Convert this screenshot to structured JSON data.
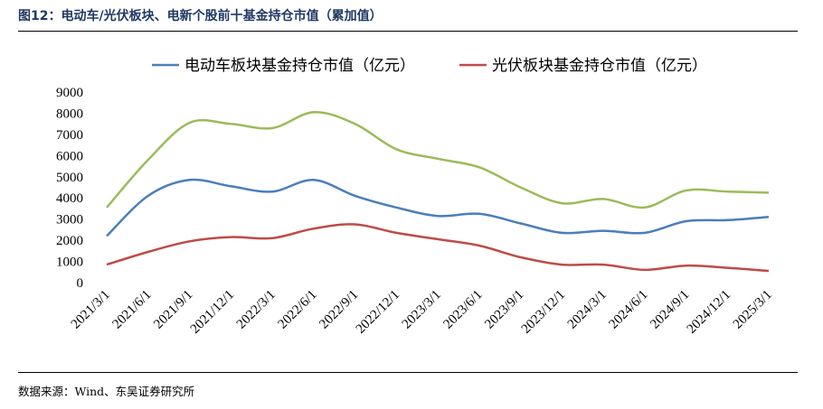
{
  "figure_title": "图12：电动车/光伏板块、电新个股前十基金持仓市值（累加值）",
  "source_note": "数据来源：Wind、东吴证券研究所",
  "chart_data": {
    "type": "line",
    "x": [
      "2021/3/1",
      "2021/6/1",
      "2021/9/1",
      "2021/12/1",
      "2022/3/1",
      "2022/6/1",
      "2022/9/1",
      "2022/12/1",
      "2023/3/1",
      "2023/6/1",
      "2023/9/1",
      "2023/12/1",
      "2024/3/1",
      "2024/6/1",
      "2024/9/1",
      "2024/12/1",
      "2025/3/1"
    ],
    "series": [
      {
        "name": "电动车板块基金持仓市值（亿元）",
        "color": "#4a7ebb",
        "legend": true,
        "values": [
          2200,
          4100,
          4850,
          4550,
          4300,
          4850,
          4100,
          3550,
          3150,
          3250,
          2800,
          2350,
          2450,
          2350,
          2900,
          2950,
          3100
        ]
      },
      {
        "name": "光伏板块基金持仓市值（亿元）",
        "color": "#be4b48",
        "legend": true,
        "values": [
          850,
          1450,
          1950,
          2150,
          2100,
          2550,
          2750,
          2350,
          2050,
          1750,
          1200,
          850,
          850,
          600,
          800,
          700,
          550
        ]
      },
      {
        "name": "",
        "color": "#9bbb59",
        "legend": false,
        "values": [
          3550,
          5800,
          7550,
          7500,
          7300,
          8050,
          7500,
          6300,
          5850,
          5450,
          4500,
          3750,
          3950,
          3550,
          4350,
          4300,
          4250
        ]
      }
    ],
    "ylim": [
      0,
      9000
    ],
    "yticks": [
      0,
      1000,
      2000,
      3000,
      4000,
      5000,
      6000,
      7000,
      8000,
      9000
    ],
    "grid": false,
    "legend_position": "top"
  }
}
